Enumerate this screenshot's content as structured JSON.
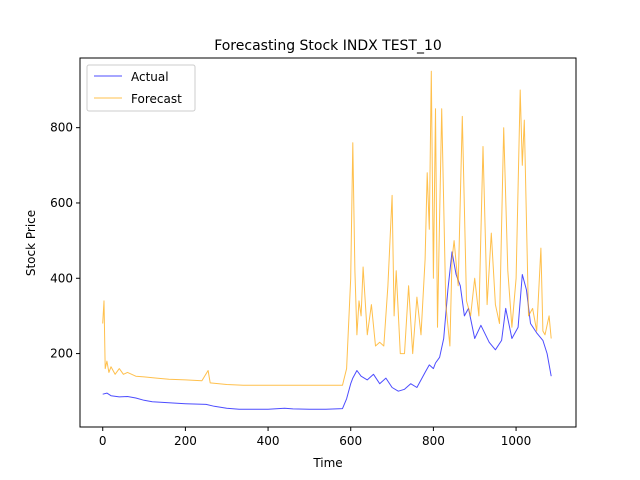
{
  "chart_data": {
    "type": "line",
    "title": "Forecasting Stock INDX TEST_10",
    "xlabel": "Time",
    "ylabel": "Stock Price",
    "xlim": [
      -55,
      1145
    ],
    "ylim": [
      5,
      985
    ],
    "xticks": [
      0,
      200,
      400,
      600,
      800,
      1000
    ],
    "yticks": [
      200,
      400,
      600,
      800
    ],
    "grid": false,
    "legend_position": "top-left",
    "series": [
      {
        "name": "Actual",
        "color": "#0000ff",
        "x": [
          0,
          10,
          20,
          40,
          60,
          80,
          100,
          120,
          150,
          180,
          200,
          220,
          250,
          270,
          300,
          330,
          360,
          400,
          440,
          460,
          500,
          540,
          580,
          590,
          600,
          605,
          615,
          625,
          640,
          655,
          670,
          685,
          700,
          715,
          730,
          745,
          760,
          780,
          790,
          800,
          805,
          815,
          825,
          835,
          845,
          855,
          865,
          875,
          885,
          900,
          915,
          935,
          950,
          965,
          975,
          990,
          1005,
          1015,
          1025,
          1035,
          1050,
          1065,
          1075,
          1085
        ],
        "y": [
          92,
          95,
          88,
          85,
          86,
          82,
          76,
          72,
          70,
          68,
          67,
          66,
          65,
          60,
          55,
          52,
          52,
          52,
          55,
          53,
          52,
          52,
          54,
          80,
          120,
          135,
          155,
          140,
          130,
          145,
          120,
          135,
          110,
          100,
          105,
          120,
          110,
          150,
          170,
          160,
          175,
          190,
          240,
          370,
          470,
          410,
          380,
          300,
          320,
          240,
          275,
          230,
          210,
          235,
          320,
          240,
          270,
          410,
          370,
          280,
          255,
          235,
          200,
          140
        ]
      },
      {
        "name": "Forecast",
        "color": "#ffa500",
        "x": [
          0,
          3,
          6,
          10,
          15,
          20,
          30,
          40,
          50,
          60,
          80,
          100,
          130,
          160,
          200,
          240,
          255,
          260,
          300,
          340,
          380,
          420,
          460,
          500,
          540,
          580,
          590,
          600,
          605,
          610,
          615,
          620,
          625,
          630,
          640,
          650,
          660,
          670,
          680,
          690,
          700,
          705,
          710,
          720,
          730,
          740,
          750,
          760,
          770,
          780,
          785,
          790,
          795,
          800,
          805,
          810,
          820,
          830,
          840,
          845,
          850,
          860,
          870,
          880,
          890,
          900,
          910,
          920,
          930,
          940,
          950,
          960,
          970,
          980,
          990,
          1000,
          1010,
          1015,
          1020,
          1030,
          1040,
          1050,
          1060,
          1065,
          1070,
          1080,
          1085
        ],
        "y": [
          280,
          340,
          160,
          180,
          150,
          165,
          145,
          160,
          145,
          150,
          140,
          138,
          135,
          132,
          130,
          128,
          155,
          122,
          118,
          116,
          116,
          116,
          116,
          116,
          116,
          116,
          160,
          400,
          760,
          420,
          250,
          340,
          300,
          430,
          250,
          330,
          220,
          230,
          220,
          380,
          620,
          300,
          420,
          200,
          200,
          380,
          200,
          350,
          250,
          450,
          680,
          530,
          950,
          400,
          850,
          270,
          850,
          330,
          220,
          450,
          500,
          380,
          830,
          340,
          300,
          400,
          300,
          750,
          330,
          520,
          330,
          280,
          800,
          420,
          270,
          400,
          900,
          700,
          820,
          300,
          320,
          260,
          480,
          260,
          250,
          300,
          240
        ]
      }
    ]
  }
}
